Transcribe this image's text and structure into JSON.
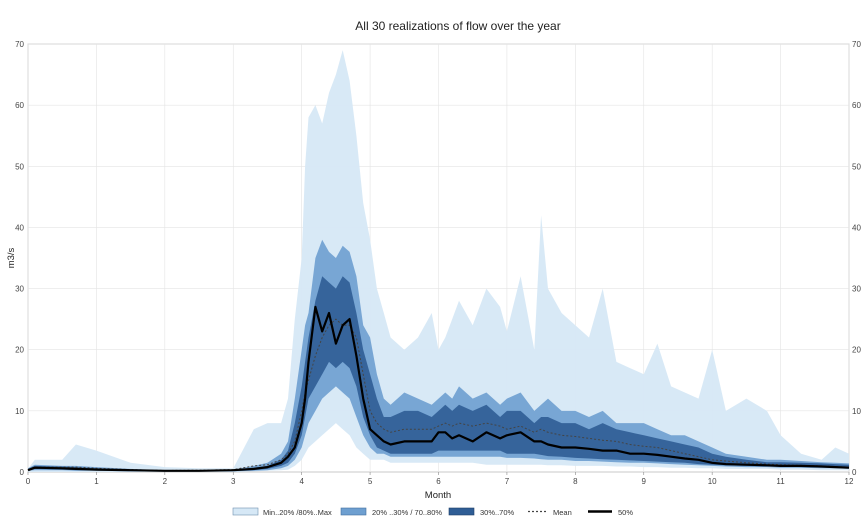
{
  "chart_data": {
    "type": "area",
    "title": "All 30 realizations of flow over the year",
    "xlabel": "Month",
    "ylabel": "m3/s",
    "xlim": [
      0,
      12
    ],
    "ylim": [
      0,
      70
    ],
    "x_ticks": [
      "0",
      "1",
      "2",
      "3",
      "4",
      "5",
      "6",
      "7",
      "8",
      "9",
      "10",
      "11",
      "12"
    ],
    "y_ticks": [
      "0",
      "10",
      "20",
      "30",
      "40",
      "50",
      "60",
      "70"
    ],
    "grid": true,
    "legend_position": "bottom",
    "legend": [
      "Min..20% /80%..Max",
      "20% ..30% / 70..80%",
      "30%..70%",
      "Mean",
      "50%"
    ],
    "colors": {
      "outer_band": "#d6e8f6",
      "middle_band": "#6e9fd0",
      "inner_band": "#2f5d95",
      "mean": "#444444",
      "median": "#000000",
      "grid": "#e4e4e4"
    },
    "x": [
      0,
      0.1,
      0.5,
      0.7,
      1.0,
      1.5,
      2.0,
      2.5,
      3.0,
      3.3,
      3.5,
      3.7,
      3.8,
      3.9,
      4.0,
      4.05,
      4.1,
      4.2,
      4.3,
      4.4,
      4.5,
      4.6,
      4.7,
      4.8,
      4.9,
      5.0,
      5.1,
      5.2,
      5.3,
      5.5,
      5.7,
      5.9,
      6.0,
      6.1,
      6.2,
      6.3,
      6.5,
      6.7,
      6.9,
      7.0,
      7.2,
      7.4,
      7.5,
      7.6,
      7.8,
      8.0,
      8.2,
      8.4,
      8.6,
      8.8,
      9.0,
      9.2,
      9.4,
      9.6,
      9.8,
      10.0,
      10.2,
      10.5,
      10.8,
      11.0,
      11.3,
      11.6,
      11.8,
      12.0
    ],
    "series": [
      {
        "name": "Min..20% /80%..Max",
        "upper": [
          0.5,
          2.0,
          2.0,
          4.5,
          3.5,
          1.5,
          0.8,
          0.6,
          0.6,
          7,
          8,
          8,
          12,
          25,
          35,
          50,
          58,
          60,
          57,
          62,
          65,
          69,
          64,
          55,
          44,
          38,
          30,
          26,
          22,
          20,
          22,
          26,
          20,
          22,
          25,
          28,
          24,
          30,
          27,
          23,
          32,
          20,
          42,
          30,
          26,
          24,
          22,
          30,
          18,
          17,
          16,
          21,
          14,
          13,
          12,
          20,
          10,
          12,
          10,
          6,
          3,
          2,
          4,
          3
        ],
        "lower": [
          0,
          0,
          0,
          0,
          0,
          0,
          0,
          0,
          0,
          0.1,
          0.2,
          0.3,
          0.4,
          1,
          2,
          3,
          4,
          5,
          6,
          7,
          8,
          7,
          6,
          4,
          3,
          2,
          2,
          2,
          1.5,
          1.5,
          1.5,
          1.5,
          1.5,
          1.5,
          1.5,
          1.5,
          1.5,
          1.2,
          1.2,
          1.2,
          1.2,
          1.2,
          1.2,
          1.1,
          1.1,
          1.0,
          1.0,
          1.0,
          0.9,
          0.9,
          0.8,
          0.8,
          0.7,
          0.7,
          0.6,
          0.6,
          0.5,
          0.5,
          0.5,
          0.4,
          0.4,
          0.3,
          0.3,
          0.3
        ]
      },
      {
        "name": "20% ..30% / 70..80%",
        "upper": [
          0.6,
          1.2,
          1.0,
          1.0,
          0.8,
          0.5,
          0.3,
          0.3,
          0.4,
          1.0,
          1.5,
          3,
          5,
          12,
          20,
          24,
          26,
          35,
          38,
          36,
          35,
          37,
          36,
          32,
          24,
          22,
          16,
          12,
          11,
          13,
          12,
          11,
          12,
          13,
          12,
          14,
          12,
          13,
          11,
          12,
          13,
          10,
          11,
          12,
          10,
          10,
          9,
          10,
          8,
          8,
          8,
          7,
          6,
          6,
          5,
          4,
          3,
          2.5,
          2,
          2,
          1.8,
          1.6,
          1.5,
          1.4
        ],
        "lower": [
          0.2,
          0.3,
          0.3,
          0.2,
          0.2,
          0.1,
          0.1,
          0.1,
          0.1,
          0.2,
          0.3,
          0.6,
          1.0,
          2,
          4,
          6,
          8,
          10,
          12,
          13,
          14,
          13,
          12,
          9,
          6,
          4,
          3,
          3,
          2.5,
          2.5,
          2.5,
          2.5,
          2.5,
          2.5,
          2.5,
          2.5,
          2.5,
          2.5,
          2.5,
          2.3,
          2.3,
          2.2,
          2.1,
          2.0,
          2.0,
          1.8,
          1.8,
          1.7,
          1.6,
          1.5,
          1.5,
          1.4,
          1.3,
          1.2,
          1.1,
          1.0,
          0.9,
          0.8,
          0.8,
          0.7,
          0.7,
          0.6,
          0.6,
          0.5
        ]
      },
      {
        "name": "30%..70%",
        "upper": [
          0.5,
          1.0,
          0.9,
          0.8,
          0.6,
          0.4,
          0.25,
          0.25,
          0.3,
          0.7,
          1.0,
          2,
          3.5,
          8,
          14,
          18,
          22,
          28,
          32,
          31,
          30,
          32,
          31,
          26,
          20,
          16,
          12,
          9,
          9,
          10,
          10,
          9,
          10,
          11,
          10,
          11,
          10,
          11,
          9,
          10,
          10,
          8,
          9,
          9,
          8,
          8,
          7,
          8,
          7,
          6.5,
          6,
          5.5,
          5,
          4.5,
          4,
          3,
          2.5,
          2,
          1.6,
          1.6,
          1.5,
          1.4,
          1.3,
          1.2
        ],
        "lower": [
          0.3,
          0.5,
          0.4,
          0.3,
          0.3,
          0.15,
          0.1,
          0.1,
          0.15,
          0.3,
          0.5,
          1.0,
          1.5,
          3,
          6,
          9,
          12,
          14,
          16,
          18,
          17,
          18,
          17,
          14,
          9,
          6,
          4,
          3.5,
          3,
          3,
          3,
          3,
          3.5,
          3.5,
          3.5,
          3.5,
          3.5,
          3.5,
          3.5,
          3,
          3,
          3,
          2.8,
          2.6,
          2.5,
          2.3,
          2.2,
          2.1,
          2.0,
          1.9,
          1.8,
          1.7,
          1.6,
          1.5,
          1.3,
          1.2,
          1.1,
          1.0,
          0.9,
          0.9,
          0.8,
          0.8,
          0.7,
          0.6
        ]
      },
      {
        "name": "Mean",
        "values": [
          0.4,
          0.8,
          0.8,
          0.8,
          0.6,
          0.4,
          0.25,
          0.3,
          0.4,
          1.0,
          1.2,
          2,
          3,
          5,
          10,
          13,
          15,
          19,
          22,
          24,
          25,
          24,
          24,
          22,
          16,
          10,
          8,
          7,
          6.5,
          7,
          7,
          7,
          7.5,
          8,
          7.5,
          8,
          7.5,
          8,
          7.5,
          7,
          7.5,
          6.5,
          7,
          6.5,
          6,
          5.8,
          5.5,
          5.2,
          5,
          4.5,
          4.2,
          4,
          3.5,
          3,
          2.5,
          2,
          1.8,
          1.5,
          1.3,
          1.2,
          1.1,
          1.0,
          0.9,
          0.8
        ]
      },
      {
        "name": "50%",
        "values": [
          0.3,
          0.7,
          0.6,
          0.5,
          0.4,
          0.3,
          0.2,
          0.2,
          0.3,
          0.5,
          0.8,
          1.5,
          2.5,
          4,
          8,
          12,
          18,
          27,
          23,
          26,
          21,
          24,
          25,
          19,
          12,
          7,
          6,
          5,
          4.5,
          5,
          5,
          5,
          6.5,
          6.5,
          5.5,
          6,
          5,
          6.5,
          5.5,
          6,
          6.5,
          5,
          5,
          4.5,
          4,
          4,
          3.8,
          3.5,
          3.5,
          3,
          3,
          2.8,
          2.5,
          2.2,
          2,
          1.5,
          1.3,
          1.2,
          1.1,
          1.0,
          1.0,
          0.9,
          0.8,
          0.7
        ]
      }
    ]
  }
}
